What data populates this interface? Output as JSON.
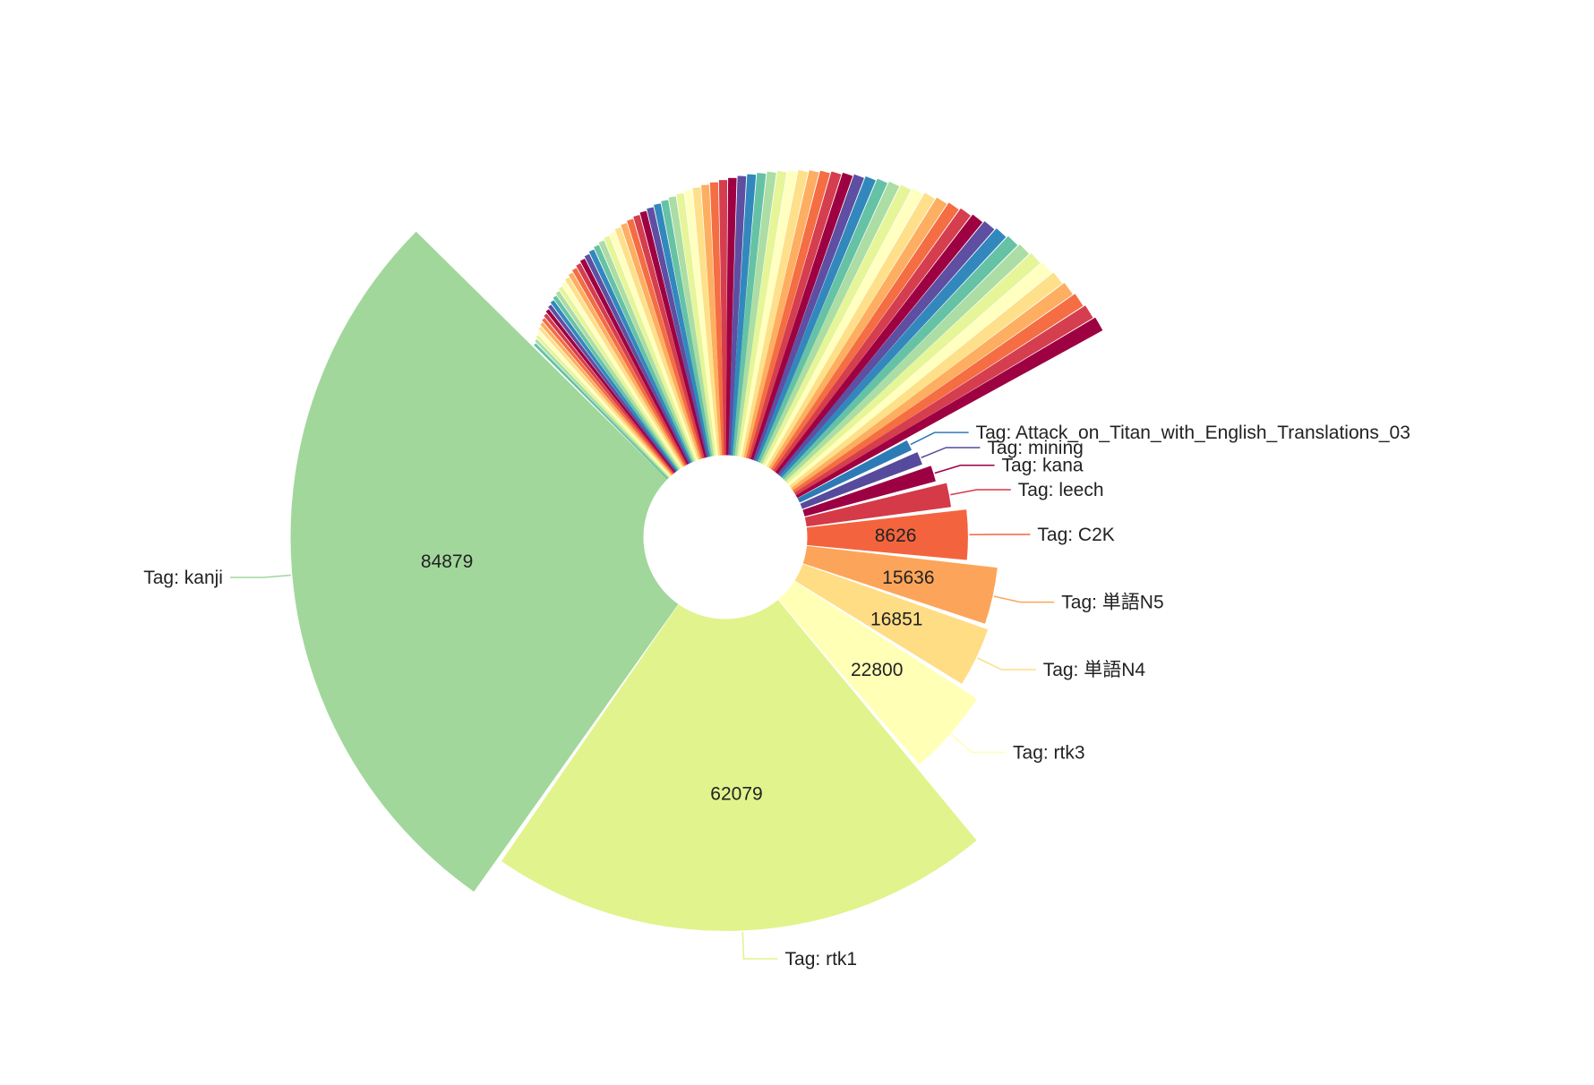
{
  "chart_data": {
    "type": "pie",
    "variant": "rose-donut",
    "title": "",
    "labeled_slices": [
      {
        "name": "Tag: kanji",
        "value": 84879,
        "color": "#a1d79b",
        "show_value": true
      },
      {
        "name": "Tag: rtk1",
        "value": 62079,
        "color": "#e1f38c",
        "show_value": true
      },
      {
        "name": "Tag: rtk3",
        "value": 22800,
        "color": "#ffffb6",
        "show_value": true
      },
      {
        "name": "Tag: 単語N4",
        "value": 16851,
        "color": "#fedd85",
        "show_value": true
      },
      {
        "name": "Tag: 単語N5",
        "value": 15636,
        "color": "#fca55a",
        "show_value": true
      },
      {
        "name": "Tag: C2K",
        "value": 8626,
        "color": "#f3643e",
        "show_value": true
      },
      {
        "name": "Tag: leech",
        "value": 6000,
        "color": "#d43a48",
        "show_value": false
      },
      {
        "name": "Tag: kana",
        "value": 4500,
        "color": "#9c0042",
        "show_value": false
      },
      {
        "name": "Tag: mining",
        "value": 3500,
        "color": "#564a9c",
        "show_value": false
      },
      {
        "name": "Tag: Attack_on_Titan_with_English_Translations_03",
        "value": 3000,
        "color": "#2d7bb6",
        "show_value": false
      }
    ],
    "unlabeled_slice_count": 75,
    "palette": [
      "#9e0142",
      "#d53e4f",
      "#f46d43",
      "#fdae61",
      "#fee08b",
      "#ffffbf",
      "#e6f598",
      "#abdda4",
      "#66c2a5",
      "#3288bd",
      "#5e4fa2"
    ]
  }
}
